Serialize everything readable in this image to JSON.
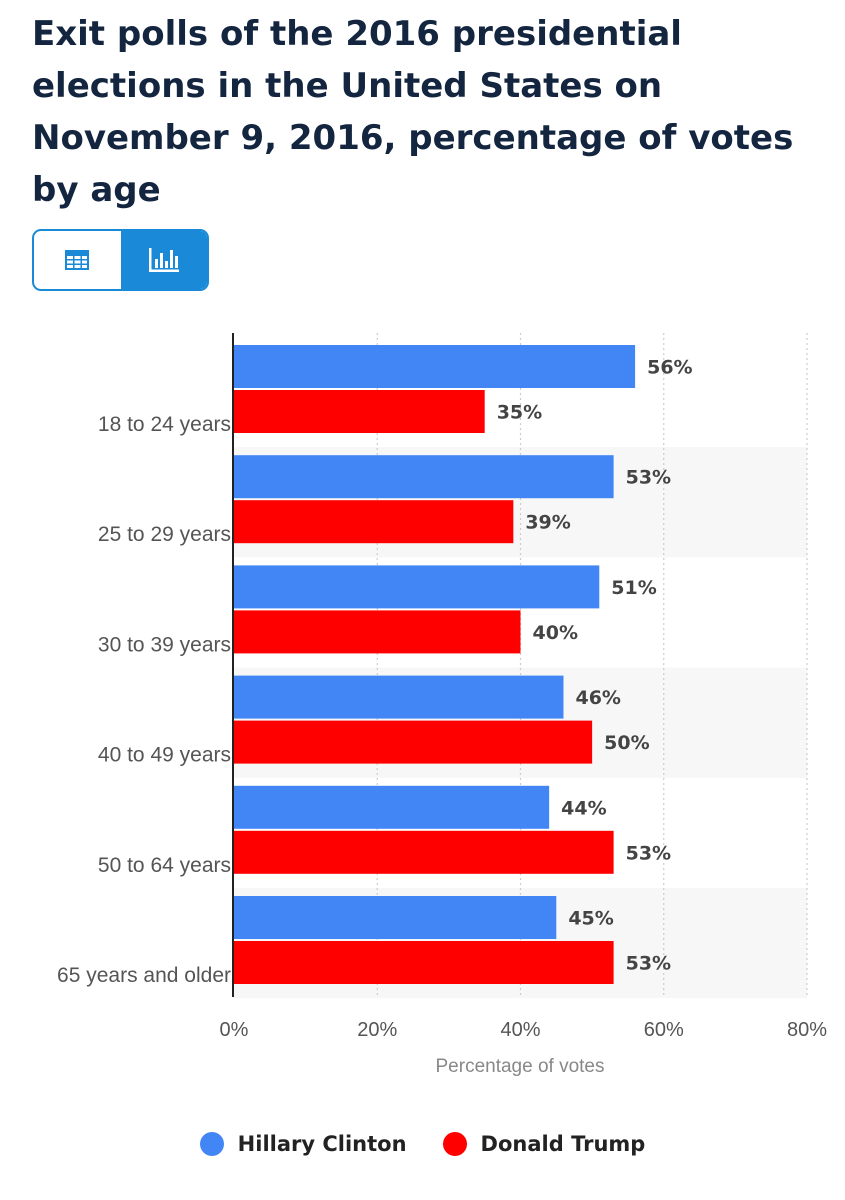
{
  "title": "Exit polls of the 2016 presidential elections in the United States on November 9, 2016, percentage of votes by age",
  "view_toggle": {
    "options": [
      {
        "icon": "table-icon",
        "selected": false
      },
      {
        "icon": "bar-chart-icon",
        "selected": true
      }
    ]
  },
  "colors": {
    "accent": "#1a8ad8",
    "clinton": "#4285f4",
    "trump": "#ff0000",
    "title": "#13253f"
  },
  "chart_data": {
    "type": "bar",
    "orientation": "horizontal",
    "categories": [
      "18 to 24 years",
      "25 to 29 years",
      "30 to 39 years",
      "40 to 49 years",
      "50 to 64 years",
      "65 years and older"
    ],
    "series": [
      {
        "name": "Hillary Clinton",
        "color": "#4285f4",
        "values": [
          56,
          53,
          51,
          46,
          44,
          45
        ]
      },
      {
        "name": "Donald Trump",
        "color": "#ff0000",
        "values": [
          35,
          39,
          40,
          50,
          53,
          53
        ]
      }
    ],
    "value_suffix": "%",
    "xlabel": "Percentage of votes",
    "ylabel": "",
    "xlim": [
      0,
      80
    ],
    "xticks": [
      0,
      20,
      40,
      60,
      80
    ],
    "xtick_labels": [
      "0%",
      "20%",
      "40%",
      "60%",
      "80%"
    ],
    "grid": true,
    "legend_position": "bottom-center"
  }
}
